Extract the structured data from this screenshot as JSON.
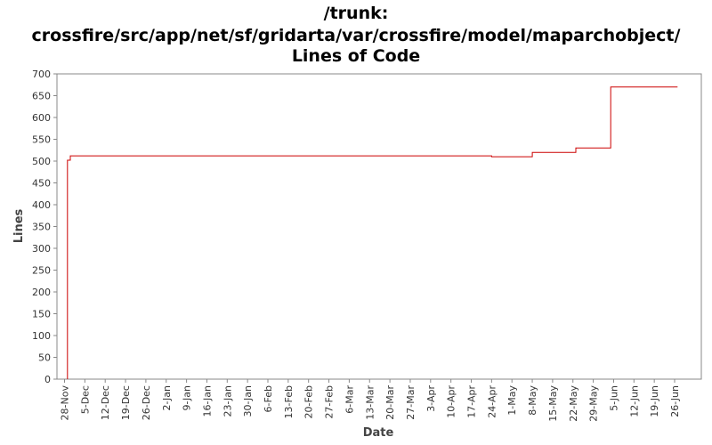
{
  "chart_data": {
    "type": "line",
    "title_lines": [
      "/trunk:",
      "crossfire/src/app/net/sf/gridarta/var/crossfire/model/maparchobject/",
      "Lines of Code"
    ],
    "xlabel": "Date",
    "ylabel": "Lines",
    "ylim": [
      0,
      700
    ],
    "yticks": [
      0,
      50,
      100,
      150,
      200,
      250,
      300,
      350,
      400,
      450,
      500,
      550,
      600,
      650,
      700
    ],
    "xticks": [
      "28-Nov",
      "5-Dec",
      "12-Dec",
      "19-Dec",
      "26-Dec",
      "2-Jan",
      "9-Jan",
      "16-Jan",
      "23-Jan",
      "30-Jan",
      "6-Feb",
      "13-Feb",
      "20-Feb",
      "27-Feb",
      "6-Mar",
      "13-Mar",
      "20-Mar",
      "27-Mar",
      "3-Apr",
      "10-Apr",
      "17-Apr",
      "24-Apr",
      "1-May",
      "8-May",
      "15-May",
      "22-May",
      "29-May",
      "5-Jun",
      "12-Jun",
      "19-Jun",
      "26-Jun"
    ],
    "series": [
      {
        "step": true,
        "color": "#cc0000",
        "points": [
          [
            "29-Nov",
            0
          ],
          [
            "29-Nov",
            502
          ],
          [
            "30-Nov",
            512
          ],
          [
            "24-Apr",
            510
          ],
          [
            "8-May",
            520
          ],
          [
            "23-May",
            530
          ],
          [
            "4-Jun",
            670
          ],
          [
            "27-Jun",
            670
          ]
        ]
      }
    ],
    "grid": false,
    "legend": "none"
  }
}
